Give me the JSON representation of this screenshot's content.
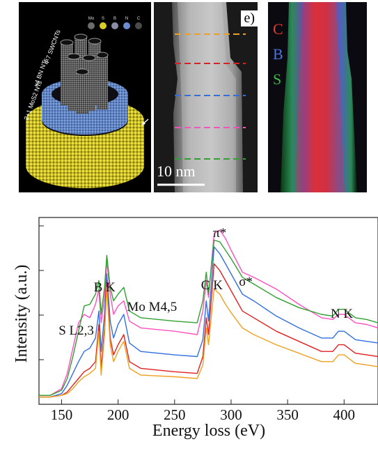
{
  "figure": {
    "panel_model": {
      "legend_elements": [
        "Mo",
        "S",
        "B",
        "N",
        "C"
      ],
      "legend_colors": [
        "#6c6c6c",
        "#d8cc28",
        "#8a8ea8",
        "#6a8ed0",
        "#4a4a4a"
      ],
      "labels": [
        "2+1 MoS2 NTs",
        "x4 BN NTs",
        "4-7 SWCNTs"
      ]
    },
    "panel_stem": {
      "letter": "e)",
      "scalebar_label": "10 nm",
      "line_colors": [
        "#f0a020",
        "#e02020",
        "#3070e0",
        "#ff50c0",
        "#30a030"
      ]
    },
    "panel_map": {
      "labels": [
        {
          "text": "C",
          "color": "#e83a2c"
        },
        {
          "text": "B",
          "color": "#4a74e0"
        },
        {
          "text": "S",
          "color": "#3cb94a"
        }
      ]
    }
  },
  "chart_data": {
    "type": "line",
    "xlabel": "Energy loss (eV)",
    "ylabel": "Intensity (a.u.)",
    "xlim": [
      130,
      430
    ],
    "x_ticks": [
      150,
      200,
      250,
      300,
      350,
      400
    ],
    "annotations": [
      {
        "text": "S L2,3",
        "x": 163
      },
      {
        "text": "B K",
        "x": 188
      },
      {
        "text": "Mo M4,5",
        "x": 230
      },
      {
        "text": "C K",
        "x": 283
      },
      {
        "text": "π*",
        "x": 290
      },
      {
        "text": "σ*",
        "x": 313
      },
      {
        "text": "N K",
        "x": 398
      }
    ],
    "x": [
      130,
      140,
      150,
      155,
      160,
      165,
      170,
      175,
      180,
      183,
      185,
      188,
      190,
      193,
      196,
      200,
      205,
      210,
      220,
      250,
      270,
      275,
      278,
      280,
      285,
      290,
      295,
      300,
      310,
      320,
      340,
      360,
      380,
      390,
      395,
      400,
      410,
      420,
      430
    ],
    "series": [
      {
        "color": "#ff50c0",
        "values": [
          0.02,
          0.02,
          0.06,
          0.15,
          0.3,
          0.45,
          0.5,
          0.48,
          0.56,
          0.65,
          0.45,
          0.6,
          0.82,
          0.62,
          0.5,
          0.55,
          0.58,
          0.46,
          0.42,
          0.4,
          0.38,
          0.52,
          0.7,
          0.6,
          0.98,
          1.0,
          0.95,
          0.88,
          0.75,
          0.72,
          0.65,
          0.56,
          0.48,
          0.47,
          0.5,
          0.5,
          0.45,
          0.44,
          0.42
        ]
      },
      {
        "color": "#30a030",
        "values": [
          0.02,
          0.02,
          0.05,
          0.12,
          0.25,
          0.4,
          0.55,
          0.56,
          0.62,
          0.7,
          0.5,
          0.66,
          0.85,
          0.66,
          0.58,
          0.62,
          0.66,
          0.52,
          0.48,
          0.46,
          0.45,
          0.58,
          0.75,
          0.62,
          0.94,
          0.93,
          0.88,
          0.83,
          0.72,
          0.68,
          0.6,
          0.54,
          0.5,
          0.49,
          0.53,
          0.53,
          0.48,
          0.47,
          0.45
        ]
      },
      {
        "color": "#3070e0",
        "values": [
          0.01,
          0.01,
          0.03,
          0.08,
          0.15,
          0.22,
          0.28,
          0.3,
          0.36,
          0.52,
          0.28,
          0.5,
          0.74,
          0.46,
          0.36,
          0.44,
          0.5,
          0.33,
          0.28,
          0.26,
          0.25,
          0.35,
          0.58,
          0.46,
          0.9,
          0.86,
          0.8,
          0.74,
          0.62,
          0.58,
          0.49,
          0.42,
          0.36,
          0.36,
          0.4,
          0.4,
          0.35,
          0.34,
          0.33
        ]
      },
      {
        "color": "#e02020",
        "values": [
          0.01,
          0.01,
          0.02,
          0.04,
          0.08,
          0.12,
          0.16,
          0.18,
          0.22,
          0.44,
          0.18,
          0.42,
          0.7,
          0.36,
          0.26,
          0.32,
          0.38,
          0.22,
          0.18,
          0.16,
          0.15,
          0.25,
          0.48,
          0.38,
          0.8,
          0.76,
          0.7,
          0.64,
          0.52,
          0.48,
          0.4,
          0.34,
          0.28,
          0.28,
          0.32,
          0.32,
          0.27,
          0.26,
          0.25
        ]
      },
      {
        "color": "#f0a020",
        "values": [
          0.01,
          0.01,
          0.02,
          0.03,
          0.06,
          0.1,
          0.13,
          0.15,
          0.18,
          0.4,
          0.14,
          0.38,
          0.66,
          0.32,
          0.22,
          0.28,
          0.34,
          0.18,
          0.14,
          0.13,
          0.12,
          0.2,
          0.42,
          0.32,
          0.65,
          0.62,
          0.56,
          0.51,
          0.42,
          0.38,
          0.32,
          0.27,
          0.22,
          0.22,
          0.26,
          0.26,
          0.21,
          0.2,
          0.19
        ]
      }
    ]
  }
}
